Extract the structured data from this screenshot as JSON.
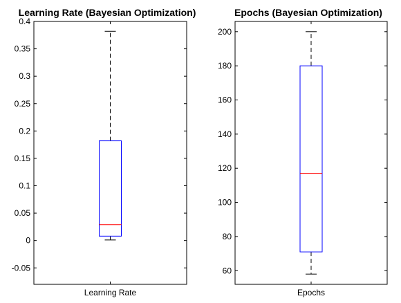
{
  "chart_data": [
    {
      "type": "box",
      "title": "Learning Rate (Bayesian Optimization)",
      "category": "Learning Rate",
      "ylim": [
        -0.08,
        0.4
      ],
      "yticks": [
        -0.05,
        0,
        0.05,
        0.1,
        0.15,
        0.2,
        0.25,
        0.3,
        0.35,
        0.4
      ],
      "ytick_labels": [
        "-0.05",
        "0",
        "0.05",
        "0.1",
        "0.15",
        "0.2",
        "0.25",
        "0.3",
        "0.35",
        "0.4"
      ],
      "box": {
        "whisker_low": 0.001,
        "q1": 0.008,
        "median": 0.029,
        "q3": 0.182,
        "whisker_high": 0.382
      },
      "colors": {
        "box": "#0000ff",
        "median": "#ff0000",
        "whisker": "#000000"
      }
    },
    {
      "type": "box",
      "title": "Epochs (Bayesian Optimization)",
      "category": "Epochs",
      "ylim": [
        52,
        206
      ],
      "yticks": [
        60,
        80,
        100,
        120,
        140,
        160,
        180,
        200
      ],
      "ytick_labels": [
        "60",
        "80",
        "100",
        "120",
        "140",
        "160",
        "180",
        "200"
      ],
      "box": {
        "whisker_low": 58,
        "q1": 71,
        "median": 117,
        "q3": 180,
        "whisker_high": 200
      },
      "colors": {
        "box": "#0000ff",
        "median": "#ff0000",
        "whisker": "#000000"
      }
    }
  ]
}
